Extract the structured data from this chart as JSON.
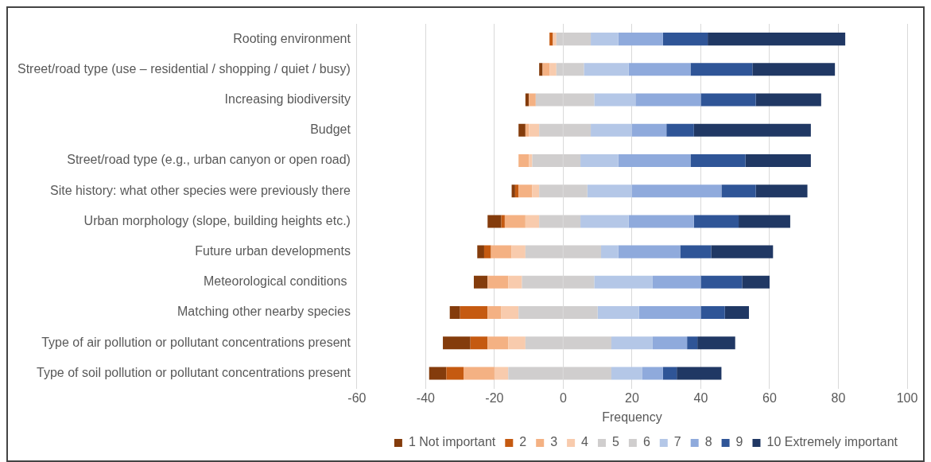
{
  "chart_data": {
    "type": "bar",
    "orientation": "horizontal",
    "stacked": true,
    "xlabel": "Frequency",
    "categories": [
      "Rooting environment",
      "Street/road type (use – residential / shopping / quiet / busy)",
      "Increasing biodiversity",
      "Budget",
      "Street/road type (e.g., urban canyon or open road)",
      "Site history: what other species were previously there",
      "Urban morphology (slope, building heights etc.)",
      "Future urban developments",
      "Meteorological conditions ",
      "Matching other nearby species",
      "Type of air pollution or pollutant concentrations present",
      "Type of soil pollution or pollutant concentrations present"
    ],
    "series": [
      {
        "name": "1 Not important",
        "color": "#843c0c",
        "values": [
          0,
          -1,
          -1,
          -2,
          0,
          -1,
          -4,
          -2,
          -4,
          -3,
          -8,
          -5
        ]
      },
      {
        "name": "2",
        "color": "#c55a11",
        "values": [
          -1,
          0,
          0,
          0,
          0,
          -1,
          -1,
          -2,
          0,
          -8,
          -5,
          -5
        ]
      },
      {
        "name": "3",
        "color": "#f4b183",
        "values": [
          0,
          -2,
          -2,
          -1,
          -3,
          -4,
          -6,
          -6,
          -6,
          -4,
          -6,
          -9
        ]
      },
      {
        "name": "4",
        "color": "#f8cbad",
        "values": [
          -1,
          -2,
          0,
          -3,
          -1,
          -2,
          -4,
          -4,
          -4,
          -5,
          -5,
          -4
        ]
      },
      {
        "name": "5",
        "color": "#d0cece",
        "values": [
          -2,
          -2,
          -8,
          -7,
          -9,
          -7,
          -7,
          -11,
          -12,
          -13,
          -11,
          -16
        ]
      },
      {
        "name": "6",
        "color": "#d0cece",
        "values": [
          8,
          6,
          9,
          8,
          5,
          7,
          5,
          11,
          9,
          10,
          14,
          14
        ]
      },
      {
        "name": "7",
        "color": "#b4c7e7",
        "values": [
          8,
          13,
          12,
          12,
          11,
          13,
          14,
          5,
          17,
          12,
          12,
          9
        ]
      },
      {
        "name": "8",
        "color": "#8faadc",
        "values": [
          13,
          18,
          19,
          10,
          21,
          26,
          19,
          18,
          14,
          18,
          10,
          6
        ]
      },
      {
        "name": "9",
        "color": "#2f5597",
        "values": [
          13,
          18,
          16,
          8,
          16,
          10,
          13,
          9,
          12,
          7,
          3,
          4
        ]
      },
      {
        "name": "10 Extremely important",
        "color": "#203864",
        "values": [
          40,
          24,
          19,
          34,
          19,
          15,
          15,
          18,
          8,
          7,
          11,
          13
        ]
      }
    ],
    "xlim": [
      -60,
      100
    ],
    "xticks": [
      -60,
      -40,
      -20,
      0,
      20,
      40,
      60,
      80,
      100
    ],
    "grid": "x",
    "legend": "bottom"
  }
}
